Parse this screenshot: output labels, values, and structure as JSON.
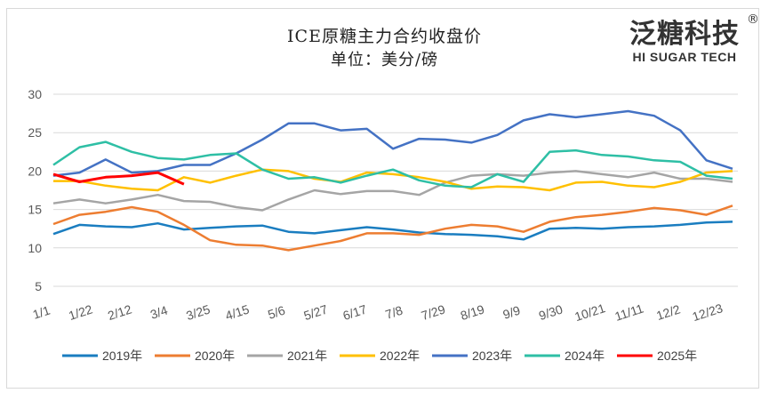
{
  "chart_data": {
    "type": "line",
    "title": "ICE原糖主力合约收盘价",
    "subtitle": "单位：美分/磅",
    "xlabel": "",
    "ylabel": "",
    "ylim": [
      5,
      30
    ],
    "yticks": [
      5,
      10,
      15,
      20,
      25,
      30
    ],
    "xtick_labels": [
      "1/1",
      "1/22",
      "2/12",
      "3/4",
      "3/25",
      "4/15",
      "5/6",
      "5/27",
      "6/17",
      "7/8",
      "7/29",
      "8/19",
      "9/9",
      "9/30",
      "10/21",
      "11/11",
      "12/2",
      "12/23"
    ],
    "grid": "horizontal",
    "legend_position": "bottom",
    "x": [
      "1/1",
      "1/15",
      "1/29",
      "2/12",
      "2/26",
      "3/12",
      "3/26",
      "4/9",
      "4/23",
      "5/7",
      "5/21",
      "6/4",
      "6/18",
      "7/2",
      "7/16",
      "7/30",
      "8/13",
      "8/27",
      "9/10",
      "9/24",
      "10/8",
      "10/22",
      "11/5",
      "11/19",
      "12/3",
      "12/17",
      "12/31"
    ],
    "series": [
      {
        "name": "2019年",
        "color": "#1A7DC0",
        "values": [
          11.8,
          13.0,
          12.8,
          12.7,
          13.2,
          12.4,
          12.6,
          12.8,
          12.9,
          12.1,
          11.9,
          12.3,
          12.7,
          12.4,
          12.0,
          11.8,
          11.7,
          11.5,
          11.1,
          12.5,
          12.6,
          12.5,
          12.7,
          12.8,
          13.0,
          13.3,
          13.4
        ]
      },
      {
        "name": "2020年",
        "color": "#ED7D31",
        "values": [
          13.1,
          14.3,
          14.7,
          15.3,
          14.7,
          13.0,
          11.0,
          10.4,
          10.3,
          9.7,
          10.3,
          10.9,
          11.9,
          11.9,
          11.7,
          12.5,
          13.0,
          12.8,
          12.1,
          13.4,
          14.0,
          14.3,
          14.7,
          15.2,
          14.9,
          14.3,
          15.5
        ]
      },
      {
        "name": "2021年",
        "color": "#A5A5A5",
        "values": [
          15.8,
          16.3,
          15.8,
          16.3,
          16.9,
          16.1,
          16.0,
          15.3,
          14.9,
          16.3,
          17.5,
          17.0,
          17.4,
          17.4,
          16.9,
          18.5,
          19.4,
          19.6,
          19.4,
          19.8,
          20.0,
          19.6,
          19.2,
          19.8,
          19.0,
          19.0,
          18.6
        ]
      },
      {
        "name": "2022年",
        "color": "#FFC000",
        "values": [
          18.7,
          18.7,
          18.1,
          17.7,
          17.5,
          19.2,
          18.5,
          19.4,
          20.2,
          20.0,
          19.0,
          18.6,
          19.8,
          19.6,
          19.2,
          18.6,
          17.7,
          18.0,
          17.9,
          17.5,
          18.5,
          18.6,
          18.1,
          17.9,
          18.6,
          19.8,
          20.0
        ]
      },
      {
        "name": "2023年",
        "color": "#4472C4",
        "values": [
          19.4,
          19.8,
          21.5,
          19.8,
          20.0,
          20.8,
          20.8,
          22.3,
          24.1,
          26.2,
          26.2,
          25.3,
          25.5,
          22.9,
          24.2,
          24.1,
          23.7,
          24.7,
          26.6,
          27.4,
          27.0,
          27.4,
          27.8,
          27.2,
          25.3,
          21.4,
          20.3
        ]
      },
      {
        "name": "2024年",
        "color": "#2EBFA5",
        "values": [
          20.8,
          23.1,
          23.8,
          22.5,
          21.7,
          21.5,
          22.1,
          22.3,
          20.2,
          19.0,
          19.2,
          18.5,
          19.4,
          20.2,
          18.8,
          18.1,
          17.9,
          19.6,
          18.6,
          22.5,
          22.7,
          22.1,
          21.9,
          21.4,
          21.2,
          19.4,
          19.0
        ]
      },
      {
        "name": "2025年",
        "color": "#FF0000",
        "values": [
          19.6,
          18.6,
          19.2,
          19.4,
          19.8,
          18.3,
          null,
          null,
          null,
          null,
          null,
          null,
          null,
          null,
          null,
          null,
          null,
          null,
          null,
          null,
          null,
          null,
          null,
          null,
          null,
          null,
          null
        ]
      }
    ]
  },
  "logo": {
    "cn": "泛糖科技",
    "en": "HI SUGAR TECH",
    "mark": "®"
  }
}
